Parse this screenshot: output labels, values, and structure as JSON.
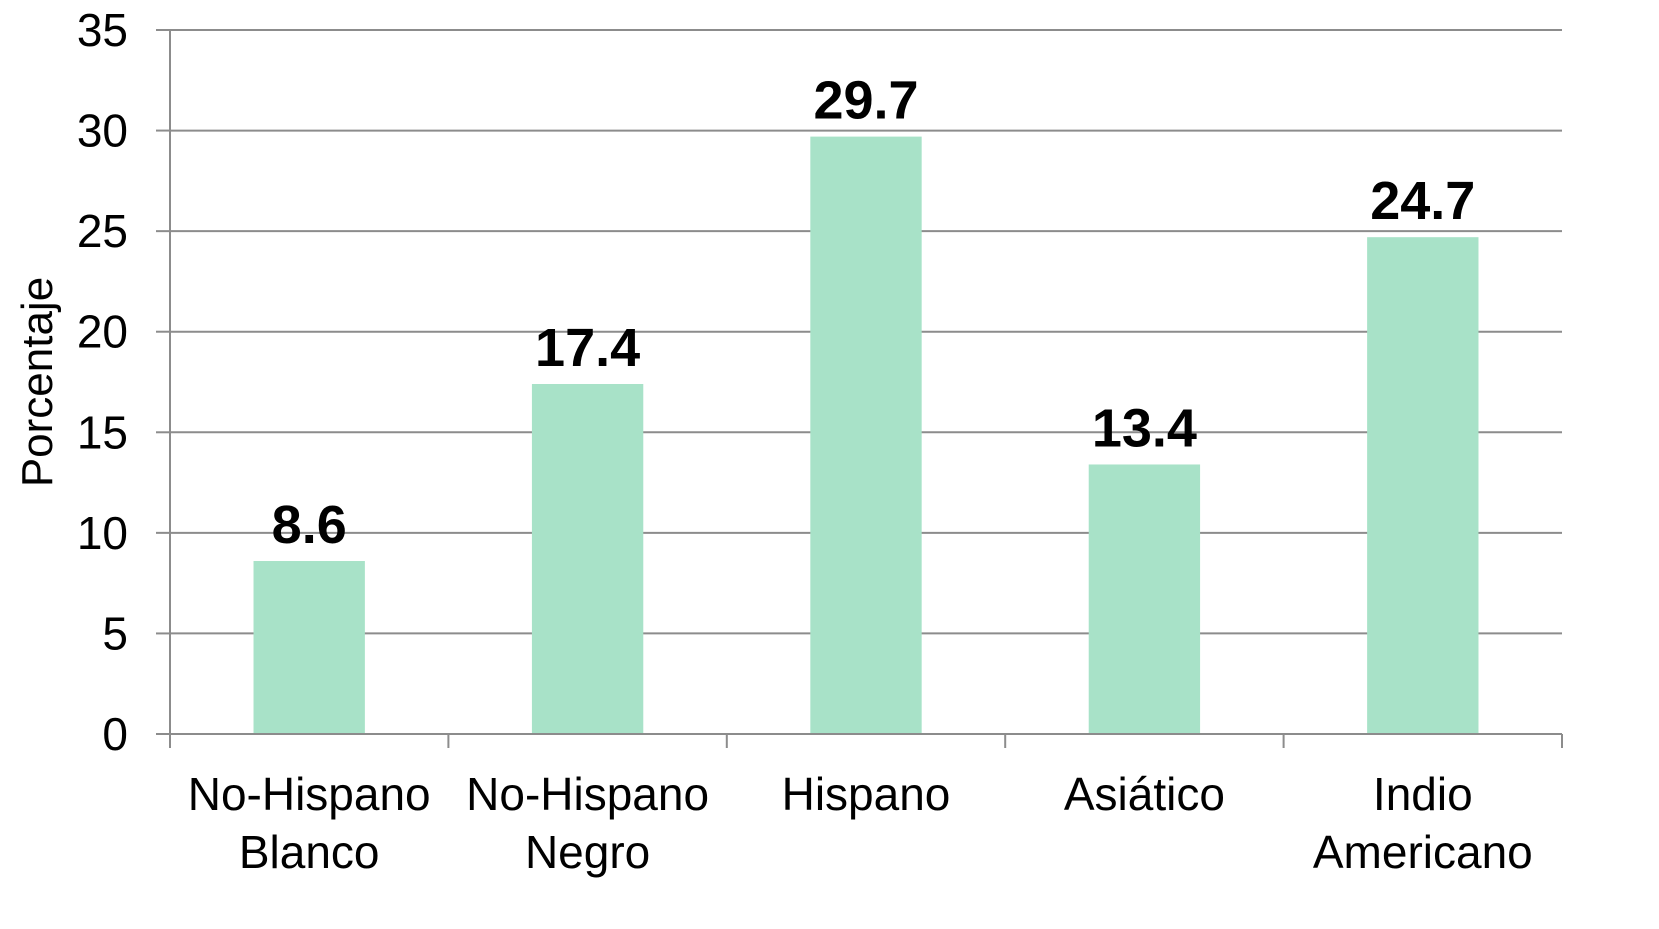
{
  "chart_data": {
    "type": "bar",
    "title": "",
    "xlabel": "",
    "ylabel": "Porcentaje",
    "ylim": [
      0,
      35
    ],
    "yticks": [
      0,
      5,
      10,
      15,
      20,
      25,
      30,
      35
    ],
    "grid": true,
    "legend": "none",
    "bar_color": "#a8e2c8",
    "categories": [
      [
        "No-Hispano",
        "Blanco"
      ],
      [
        "No-Hispano",
        "Negro"
      ],
      [
        "Hispano"
      ],
      [
        "Asiático"
      ],
      [
        "Indio",
        "Americano"
      ]
    ],
    "values": [
      8.6,
      17.4,
      29.7,
      13.4,
      24.7
    ],
    "data_labels": [
      "8.6",
      "17.4",
      "29.7",
      "13.4",
      "24.7"
    ]
  }
}
